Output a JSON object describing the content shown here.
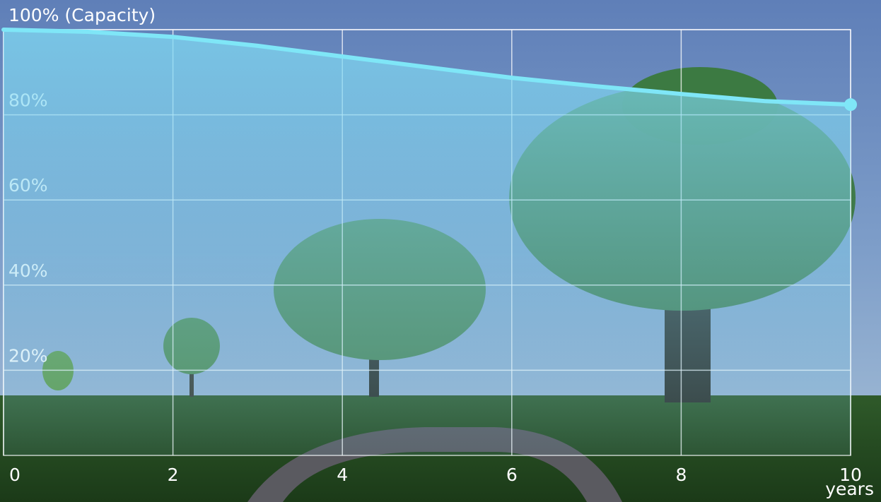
{
  "chart_data": {
    "type": "line",
    "x": [
      0,
      1,
      2,
      3,
      4,
      5,
      6,
      7,
      8,
      9,
      10
    ],
    "series": [
      {
        "name": "Capacity",
        "color": "#7fe6f7",
        "values": [
          100,
          99.5,
          98.3,
          96.2,
          93.7,
          91.2,
          88.7,
          86.7,
          84.9,
          83.2,
          82.4
        ]
      }
    ],
    "xlim": [
      0,
      10
    ],
    "xticks": [
      0,
      2,
      4,
      6,
      8,
      10
    ],
    "xlabel": "years",
    "ylim": [
      0,
      100
    ],
    "yticks": [
      {
        "value": 20,
        "label": "20%"
      },
      {
        "value": 40,
        "label": "40%"
      },
      {
        "value": 60,
        "label": "60%"
      },
      {
        "value": 80,
        "label": "80%"
      },
      {
        "value": 100,
        "label": "100% (Capacity)"
      }
    ],
    "grid": true
  }
}
